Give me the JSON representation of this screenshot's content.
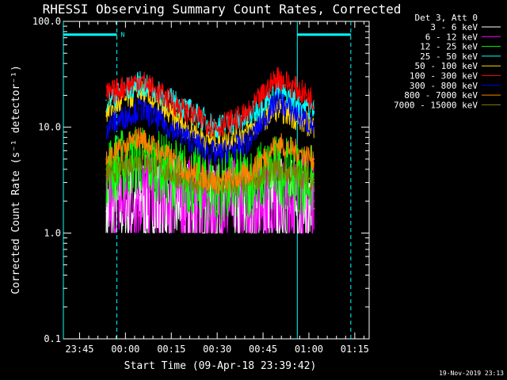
{
  "chart_data": {
    "type": "line",
    "title": "RHESSI Observing Summary Count Rates, Corrected",
    "xlabel": "Start Time (09-Apr-18 23:39:42)",
    "ylabel": "Corrected Count Rate (s⁻¹ detector⁻¹)",
    "y_scale": "log",
    "ylim": [
      0.1,
      100.0
    ],
    "y_ticks": [
      "100.0",
      "10.0",
      "1.0",
      "0.1"
    ],
    "x_tick_labels": [
      "23:45",
      "00:00",
      "00:15",
      "00:30",
      "00:45",
      "01:00",
      "01:15"
    ],
    "x_ticks_minutes": [
      5.3,
      20.3,
      35.3,
      50.3,
      65.3,
      80.3,
      95.3
    ],
    "xlim_minutes": [
      0,
      100
    ],
    "data_span_minutes": [
      14,
      82
    ],
    "legend_header": "Det 3, Att 0",
    "legend_position": "top-right",
    "flag_marker": "N",
    "footer_date": "19-Nov-2019 23:13",
    "series": [
      {
        "name": "3 - 6 keV",
        "color": "#ffffff",
        "x": [
          14,
          25,
          40,
          50,
          60,
          70,
          82
        ],
        "values": [
          1.6,
          2.0,
          1.8,
          1.6,
          1.7,
          2.0,
          1.7
        ]
      },
      {
        "name": "6 - 12 keV",
        "color": "#ff00ff",
        "x": [
          14,
          25,
          40,
          50,
          60,
          70,
          82
        ],
        "values": [
          1.8,
          2.3,
          2.1,
          1.9,
          2.0,
          2.3,
          2.0
        ]
      },
      {
        "name": "12 - 25 keV",
        "color": "#00ff00",
        "x": [
          14,
          25,
          40,
          50,
          60,
          70,
          82
        ],
        "values": [
          4.0,
          5.0,
          3.3,
          2.6,
          3.0,
          4.0,
          3.0
        ]
      },
      {
        "name": "25 - 50 keV",
        "color": "#00ffff",
        "x": [
          14,
          25,
          40,
          50,
          60,
          70,
          82
        ],
        "values": [
          18,
          26,
          15,
          10,
          12,
          22,
          14
        ]
      },
      {
        "name": "50 - 100 keV",
        "color": "#ffd700",
        "x": [
          14,
          25,
          40,
          50,
          60,
          70,
          82
        ],
        "values": [
          14,
          22,
          10,
          7,
          9,
          15,
          10
        ]
      },
      {
        "name": "100 - 300 keV",
        "color": "#ff0000",
        "x": [
          14,
          25,
          40,
          50,
          60,
          70,
          82
        ],
        "values": [
          20,
          28,
          14,
          10,
          13,
          30,
          18
        ]
      },
      {
        "name": "300 - 800 keV",
        "color": "#0000ff",
        "x": [
          14,
          25,
          40,
          50,
          60,
          70,
          82
        ],
        "values": [
          10,
          15,
          8,
          5.5,
          7,
          18,
          10
        ]
      },
      {
        "name": "800 - 7000 keV",
        "color": "#ff8000",
        "x": [
          14,
          25,
          40,
          50,
          60,
          70,
          82
        ],
        "values": [
          5,
          8,
          4,
          3,
          3.5,
          7,
          5
        ]
      },
      {
        "name": "7000 - 15000 keV",
        "color": "#808000",
        "x": [
          14,
          25,
          40,
          50,
          60,
          70,
          82
        ],
        "values": [
          3.5,
          5,
          3.2,
          2.8,
          3,
          4,
          3.2
        ]
      }
    ],
    "reference_lines": {
      "solid_vertical_x": [
        0,
        76.5
      ],
      "dashed_vertical_x": [
        17.5,
        94
      ],
      "night_bars": [
        [
          0,
          17.5
        ],
        [
          76.5,
          94
        ]
      ],
      "night_bar_level": 75,
      "color": "#00ffff"
    }
  }
}
